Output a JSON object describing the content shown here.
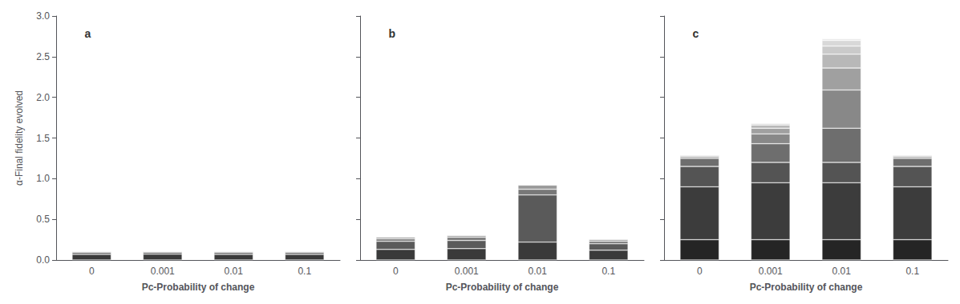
{
  "chart_data": [
    {
      "type": "bar",
      "stacked": true,
      "grid": false,
      "annotations": [
        "a"
      ],
      "categories": [
        "0",
        "0.001",
        "0.01",
        "0.1"
      ],
      "xlabel": "Pc-Probability of change",
      "ylabel": "α-Final fidelity evolved",
      "ylim": [
        0,
        3.0
      ],
      "yticks": [
        {
          "value": 0,
          "label": "0.0"
        },
        0.5,
        {
          "value": 1,
          "label": "1.0"
        },
        1.5,
        {
          "value": 2,
          "label": "2.0"
        },
        2.5,
        {
          "value": 3,
          "label": "3.0"
        }
      ],
      "series": [
        {
          "color": "#3a3a3a",
          "values": [
            0.07,
            0.072,
            0.07,
            0.07
          ]
        },
        {
          "color": "#5a5a5a",
          "values": [
            0.022,
            0.022,
            0.022,
            0.022
          ]
        },
        {
          "color": "#787878",
          "values": [
            0.01,
            0.01,
            0.01,
            0.01
          ]
        },
        {
          "color": "#999999",
          "values": [
            0.005,
            0.005,
            0.005,
            0.005
          ]
        }
      ]
    },
    {
      "type": "bar",
      "stacked": true,
      "grid": false,
      "tick_labels": "x",
      "annotations": [
        "b"
      ],
      "categories": [
        "0",
        "0.001",
        "0.01",
        "0.1"
      ],
      "xlabel": "Pc-Probability of change",
      "ylim": [
        0,
        3.0
      ],
      "yticks": [
        0,
        0.5,
        1,
        1.5,
        2,
        2.5,
        3
      ],
      "series": [
        {
          "color": "#3a3a3a",
          "values": [
            0.13,
            0.14,
            0.22,
            0.12
          ]
        },
        {
          "color": "#5a5a5a",
          "values": [
            0.1,
            0.1,
            0.58,
            0.08
          ]
        },
        {
          "color": "#787878",
          "values": [
            0.03,
            0.04,
            0.07,
            0.03
          ]
        },
        {
          "color": "#999999",
          "values": [
            0.02,
            0.02,
            0.05,
            0.02
          ]
        }
      ]
    },
    {
      "type": "bar",
      "stacked": true,
      "grid": false,
      "tick_labels": "x",
      "annotations": [
        "c"
      ],
      "categories": [
        "0",
        "0.001",
        "0.01",
        "0.1"
      ],
      "xlabel": "Pc-Probability of change",
      "ylim": [
        0,
        3.0
      ],
      "yticks": [
        0,
        0.5,
        1,
        1.5,
        2,
        2.5,
        3
      ],
      "series": [
        {
          "color": "#252525",
          "values": [
            0.25,
            0.25,
            0.25,
            0.25
          ]
        },
        {
          "color": "#3c3c3c",
          "values": [
            0.65,
            0.7,
            0.7,
            0.65
          ]
        },
        {
          "color": "#545454",
          "values": [
            0.25,
            0.25,
            0.25,
            0.25
          ]
        },
        {
          "color": "#6e6e6e",
          "values": [
            0.1,
            0.23,
            0.42,
            0.1
          ]
        },
        {
          "color": "#888888",
          "values": [
            0.02,
            0.12,
            0.47,
            0.02
          ]
        },
        {
          "color": "#a0a0a0",
          "values": [
            0.01,
            0.07,
            0.27,
            0.01
          ]
        },
        {
          "color": "#b8b8b8",
          "values": [
            0.01,
            0.04,
            0.17,
            0.01
          ]
        },
        {
          "color": "#cacaca",
          "values": [
            0.005,
            0.015,
            0.1,
            0.005
          ]
        },
        {
          "color": "#d8d8d8",
          "values": [
            0.003,
            0.01,
            0.07,
            0.003
          ]
        },
        {
          "color": "#e5e5e5",
          "values": [
            0.002,
            0.005,
            0.02,
            0.002
          ]
        }
      ]
    }
  ]
}
